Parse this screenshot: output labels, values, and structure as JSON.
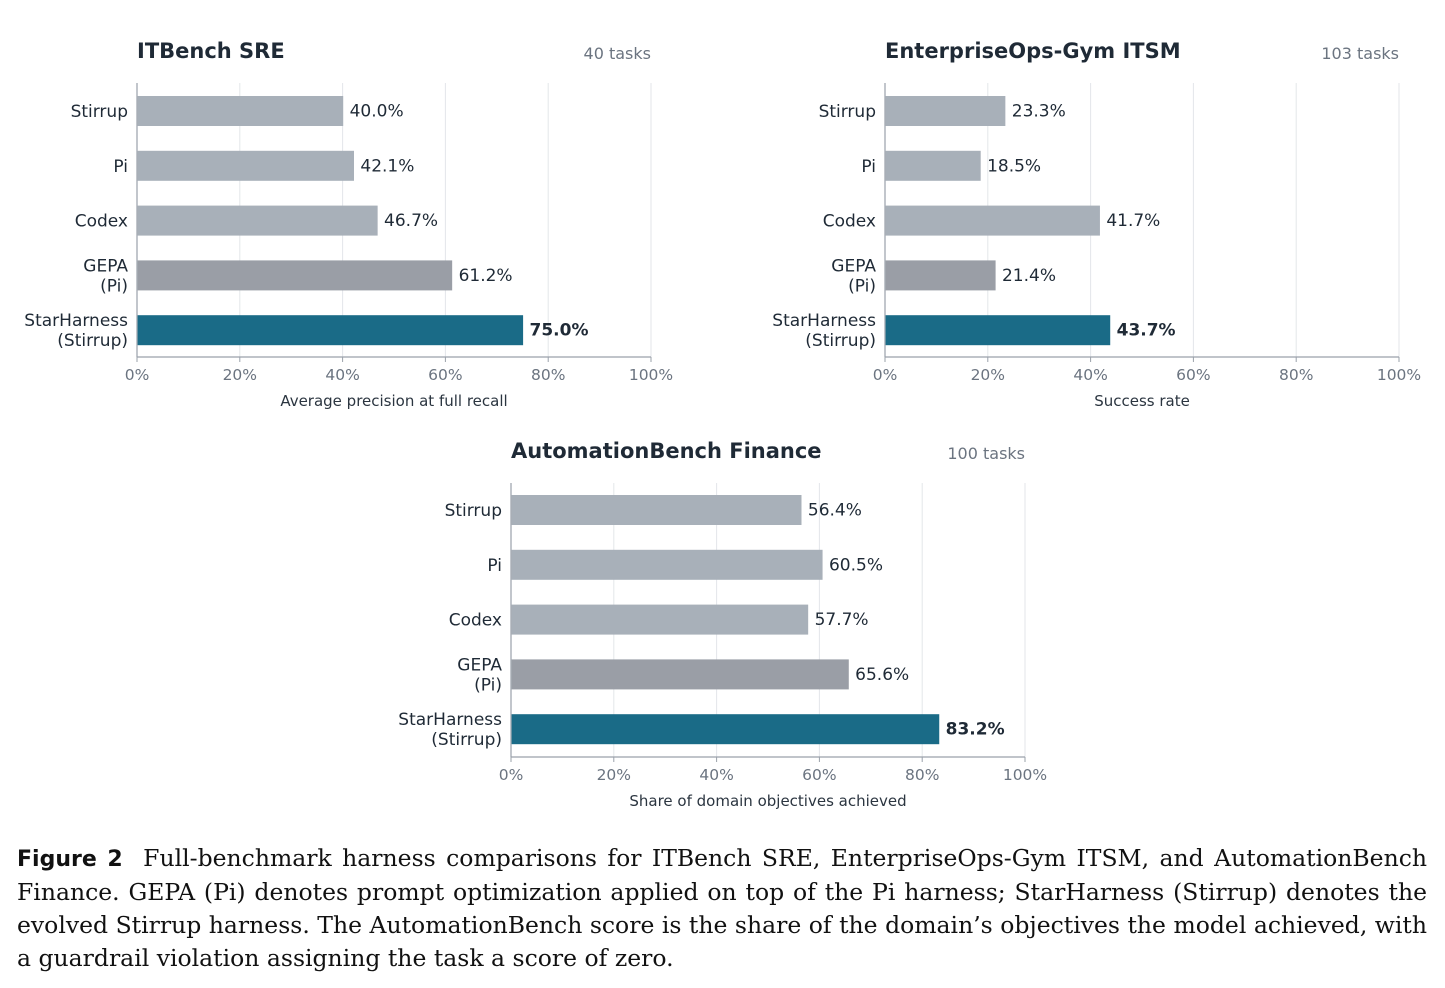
{
  "chart_data": [
    {
      "type": "bar",
      "orientation": "horizontal",
      "title": "ITBench SRE",
      "subtitle": "40 tasks",
      "xlabel": "Average precision at full recall",
      "xlim": [
        0,
        100
      ],
      "xticks": [
        "0%",
        "20%",
        "40%",
        "60%",
        "80%",
        "100%"
      ],
      "grid": "x",
      "categories": [
        "Stirrup",
        "Pi",
        "Codex",
        "GEPA\n(Pi)",
        "StarHarness\n(Stirrup)"
      ],
      "values": [
        40.0,
        42.1,
        46.7,
        61.2,
        75.0
      ],
      "value_labels": [
        "40.0%",
        "42.1%",
        "46.7%",
        "61.2%",
        "75.0%"
      ],
      "bar_colors": [
        "#a8b0b9",
        "#a8b0b9",
        "#a8b0b9",
        "#9a9ea6",
        "#1a6b87"
      ]
    },
    {
      "type": "bar",
      "orientation": "horizontal",
      "title": "EnterpriseOps-Gym ITSM",
      "subtitle": "103 tasks",
      "xlabel": "Success rate",
      "xlim": [
        0,
        100
      ],
      "xticks": [
        "0%",
        "20%",
        "40%",
        "60%",
        "80%",
        "100%"
      ],
      "grid": "x",
      "categories": [
        "Stirrup",
        "Pi",
        "Codex",
        "GEPA\n(Pi)",
        "StarHarness\n(Stirrup)"
      ],
      "values": [
        23.3,
        18.5,
        41.7,
        21.4,
        43.7
      ],
      "value_labels": [
        "23.3%",
        "18.5%",
        "41.7%",
        "21.4%",
        "43.7%"
      ],
      "bar_colors": [
        "#a8b0b9",
        "#a8b0b9",
        "#a8b0b9",
        "#9a9ea6",
        "#1a6b87"
      ]
    },
    {
      "type": "bar",
      "orientation": "horizontal",
      "title": "AutomationBench Finance",
      "subtitle": "100 tasks",
      "xlabel": "Share of domain objectives achieved",
      "xlim": [
        0,
        100
      ],
      "xticks": [
        "0%",
        "20%",
        "40%",
        "60%",
        "80%",
        "100%"
      ],
      "grid": "x",
      "categories": [
        "Stirrup",
        "Pi",
        "Codex",
        "GEPA\n(Pi)",
        "StarHarness\n(Stirrup)"
      ],
      "values": [
        56.4,
        60.5,
        57.7,
        65.6,
        83.2
      ],
      "value_labels": [
        "56.4%",
        "60.5%",
        "57.7%",
        "65.6%",
        "83.2%"
      ],
      "bar_colors": [
        "#a8b0b9",
        "#a8b0b9",
        "#a8b0b9",
        "#9a9ea6",
        "#1a6b87"
      ]
    }
  ],
  "caption": {
    "label": "Figure 2",
    "text": "Full-benchmark harness comparisons for ITBench SRE, EnterpriseOps-Gym ITSM, and AutomationBench Finance. GEPA (Pi) denotes prompt optimization applied on top of the Pi harness; StarHarness (Stirrup) denotes the evolved Stirrup harness. The AutomationBench score is the share of the domain’s objectives the model achieved, with a guardrail violation assigning the task a score of zero."
  }
}
